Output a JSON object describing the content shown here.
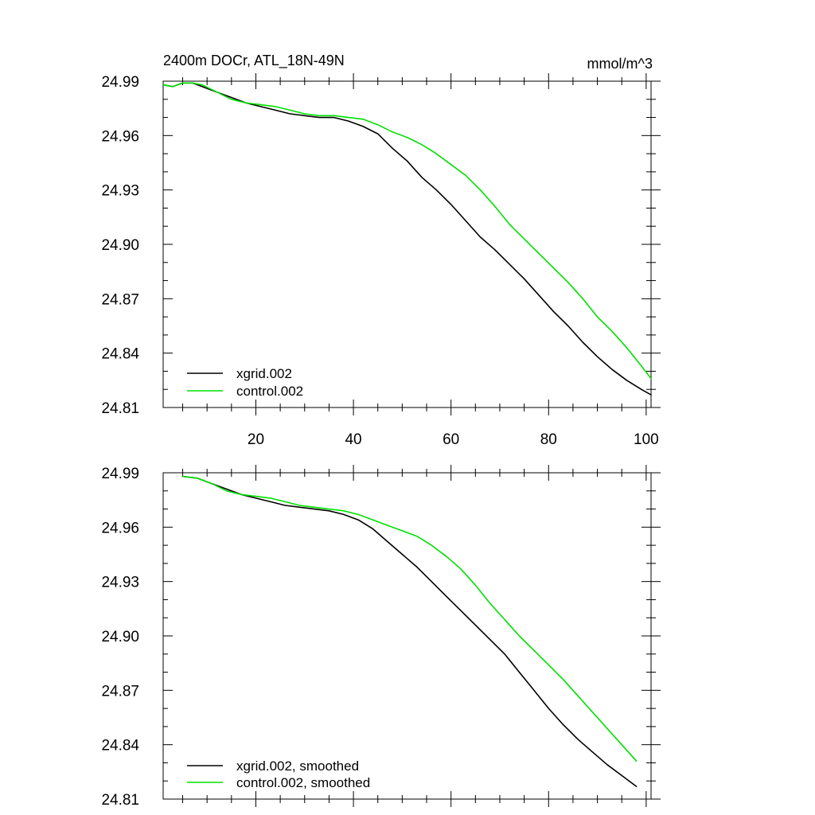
{
  "chart_data": [
    {
      "type": "line",
      "title": "2400m DOCr, ATL_18N-49N",
      "units": "mmol/m^3",
      "xlim": [
        1,
        101
      ],
      "ylim": [
        24.81,
        24.99
      ],
      "x_ticks": [
        20,
        40,
        60,
        80,
        100
      ],
      "y_ticks": [
        "24.99",
        "24.96",
        "24.93",
        "24.90",
        "24.87",
        "24.84",
        "24.81"
      ],
      "grid": false,
      "legend_position": "bottom-left",
      "series": [
        {
          "name": "xgrid.002",
          "color": "#000000",
          "x": [
            1,
            3,
            5,
            7,
            9,
            12,
            15,
            18,
            21,
            24,
            27,
            30,
            33,
            36,
            39,
            42,
            45,
            48,
            51,
            54,
            57,
            60,
            63,
            66,
            69,
            72,
            75,
            78,
            81,
            84,
            87,
            90,
            93,
            96,
            99,
            101
          ],
          "y": [
            24.988,
            24.987,
            24.989,
            24.989,
            24.987,
            24.984,
            24.981,
            24.978,
            24.976,
            24.974,
            24.972,
            24.971,
            24.97,
            24.97,
            24.968,
            24.965,
            24.961,
            24.953,
            24.946,
            24.937,
            24.93,
            24.922,
            24.913,
            24.904,
            24.897,
            24.889,
            24.881,
            24.872,
            24.863,
            24.855,
            24.846,
            24.838,
            24.831,
            24.825,
            24.82,
            24.817
          ]
        },
        {
          "name": "control.002",
          "color": "#00e000",
          "x": [
            1,
            3,
            5,
            7,
            9,
            12,
            15,
            18,
            21,
            24,
            27,
            30,
            33,
            36,
            39,
            42,
            45,
            48,
            51,
            54,
            57,
            60,
            63,
            66,
            69,
            72,
            75,
            78,
            81,
            84,
            87,
            90,
            93,
            96,
            99,
            101
          ],
          "y": [
            24.988,
            24.987,
            24.989,
            24.989,
            24.988,
            24.984,
            24.98,
            24.978,
            24.977,
            24.976,
            24.974,
            24.972,
            24.971,
            24.971,
            24.97,
            24.969,
            24.966,
            24.962,
            24.959,
            24.955,
            24.95,
            24.944,
            24.938,
            24.93,
            24.921,
            24.911,
            24.903,
            24.895,
            24.887,
            24.879,
            24.87,
            24.86,
            24.852,
            24.843,
            24.833,
            24.826
          ]
        }
      ]
    },
    {
      "type": "line",
      "xlim": [
        1,
        101
      ],
      "ylim": [
        24.81,
        24.99
      ],
      "y_ticks": [
        "24.99",
        "24.96",
        "24.93",
        "24.90",
        "24.87",
        "24.84",
        "24.81"
      ],
      "grid": false,
      "legend_position": "bottom-left",
      "series": [
        {
          "name": "xgrid.002, smoothed",
          "color": "#000000",
          "x": [
            5,
            8,
            11,
            14,
            17,
            20,
            23,
            26,
            29,
            32,
            35,
            38,
            41,
            44,
            47,
            50,
            53,
            56,
            59,
            62,
            65,
            68,
            71,
            74,
            77,
            80,
            83,
            86,
            89,
            92,
            95,
            98
          ],
          "y": [
            24.988,
            24.987,
            24.984,
            24.981,
            24.978,
            24.976,
            24.974,
            24.972,
            24.971,
            24.97,
            24.969,
            24.967,
            24.964,
            24.959,
            24.952,
            24.945,
            24.938,
            24.93,
            24.922,
            24.914,
            24.906,
            24.898,
            24.89,
            24.88,
            24.87,
            24.86,
            24.851,
            24.843,
            24.836,
            24.829,
            24.823,
            24.817
          ]
        },
        {
          "name": "control.002, smoothed",
          "color": "#00e000",
          "x": [
            5,
            8,
            11,
            14,
            17,
            20,
            23,
            26,
            29,
            32,
            35,
            38,
            41,
            44,
            47,
            50,
            53,
            56,
            59,
            62,
            65,
            68,
            71,
            74,
            77,
            80,
            83,
            86,
            89,
            92,
            95,
            98
          ],
          "y": [
            24.988,
            24.987,
            24.984,
            24.98,
            24.978,
            24.977,
            24.976,
            24.974,
            24.972,
            24.971,
            24.97,
            24.969,
            24.967,
            24.964,
            24.961,
            24.958,
            24.955,
            24.95,
            24.944,
            24.937,
            24.928,
            24.918,
            24.909,
            24.9,
            24.892,
            24.884,
            24.876,
            24.867,
            24.858,
            24.849,
            24.84,
            24.831
          ]
        }
      ]
    }
  ]
}
